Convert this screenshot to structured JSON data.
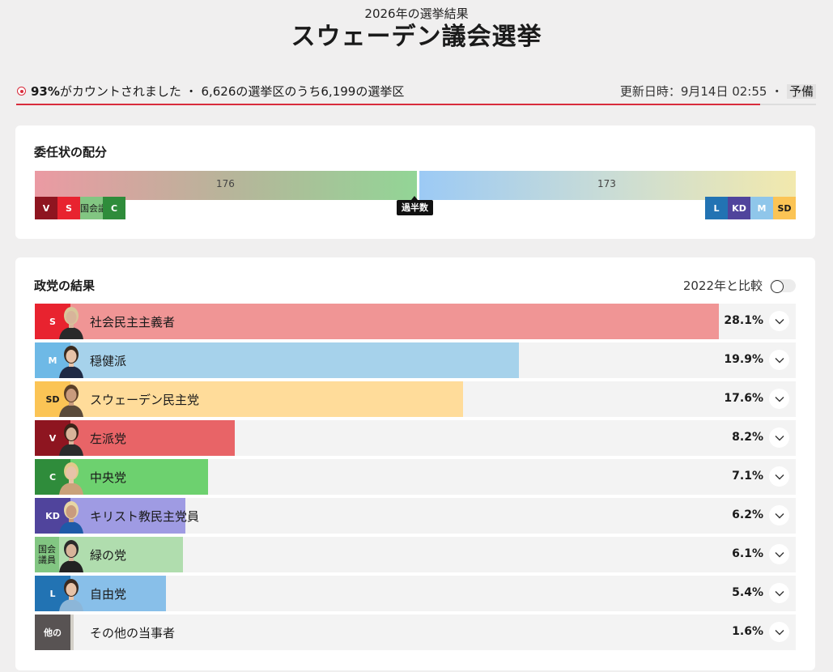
{
  "header": {
    "subtitle": "2026年の選挙結果",
    "title": "スウェーデン議会選挙"
  },
  "status": {
    "percent": "93%",
    "counted_text": "がカウントされました ・ 6,626の選挙区のうち6,199の選挙区",
    "updated": "更新日時：9月14日 02:55 ・ ",
    "badge": "予備",
    "progress": 0.93
  },
  "seats": {
    "title": "委任状の配分",
    "left_total": "176",
    "right_total": "173",
    "majority_label": "過半数",
    "left_blocs": [
      "V",
      "S",
      "国会議員",
      "C"
    ],
    "right_blocs": [
      "L",
      "KD",
      "M",
      "SD"
    ]
  },
  "results": {
    "title": "政党の結果",
    "compare_label": "2022年と比較",
    "parties": [
      {
        "abbr": "S",
        "name": "社会民主主義者",
        "pct": "28.1%",
        "value": 28.1
      },
      {
        "abbr": "M",
        "name": "穏健派",
        "pct": "19.9%",
        "value": 19.9
      },
      {
        "abbr": "SD",
        "name": "スウェーデン民主党",
        "pct": "17.6%",
        "value": 17.6
      },
      {
        "abbr": "V",
        "name": "左派党",
        "pct": "8.2%",
        "value": 8.2
      },
      {
        "abbr": "C",
        "name": "中央党",
        "pct": "7.1%",
        "value": 7.1
      },
      {
        "abbr": "KD",
        "name": "キリスト教民主党員",
        "pct": "6.2%",
        "value": 6.2
      },
      {
        "abbr": "国会議員",
        "name": "緑の党",
        "pct": "6.1%",
        "value": 6.1
      },
      {
        "abbr": "L",
        "name": "自由党",
        "pct": "5.4%",
        "value": 5.4
      },
      {
        "abbr": "他の",
        "name": "その他の当事者",
        "pct": "1.6%",
        "value": 1.6
      }
    ]
  },
  "colors": {
    "S": "#e8232f",
    "S_fill": "#f09595",
    "M": "#6eb9e6",
    "M_fill": "#a6d2eb",
    "SD": "#fbc455",
    "SD_fill": "#ffdc9a",
    "V": "#8e1520",
    "V_fill": "#e86467",
    "C": "#2f8c3b",
    "C_fill": "#6dd16f",
    "KD": "#50449c",
    "KD_fill": "#9f9be3",
    "MP": "#82c682",
    "MP_fill": "#b0ddae",
    "L": "#2273b3",
    "L_fill": "#88bfe9",
    "OTH": "#585353",
    "OTH_fill": "#d3d0c8",
    "accent": "#d82c3c"
  }
}
